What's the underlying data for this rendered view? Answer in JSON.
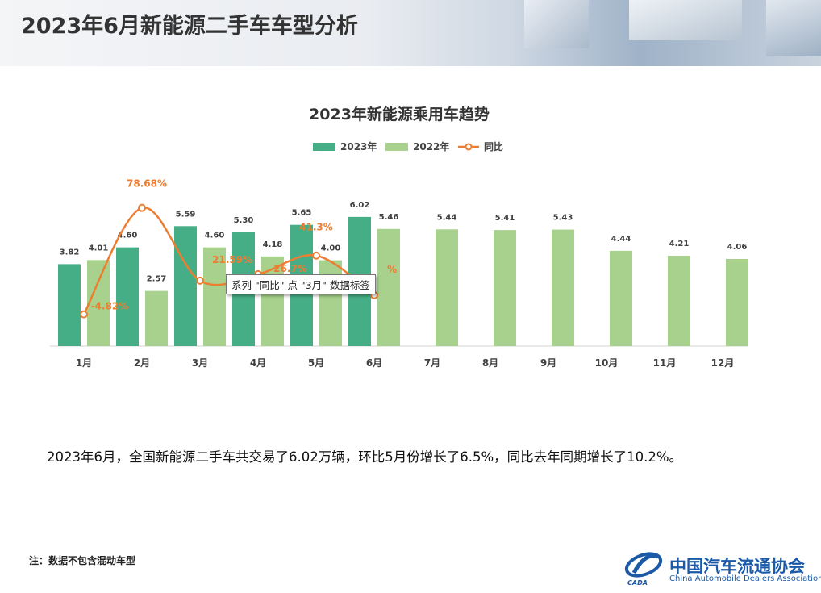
{
  "page_title": "2023年6月新能源二手车车型分析",
  "summary": "2023年6月，全国新能源二手车共交易了6.02万辆，环比5月份增长了6.5%，同比去年同期增长了10.2%。",
  "note": "注：数据不包含混动车型",
  "tooltip": "系列 \"同比\" 点 \"3月\" 数据标签",
  "logo": {
    "cn": "中国汽车流通协会",
    "en": "China Automobile Dealers Association",
    "abbr": "CADA",
    "color": "#1c5aa8"
  },
  "colors": {
    "series_2023": "#46ae86",
    "series_2022": "#a8d18d",
    "yoy": "#ed7d31"
  },
  "chart_data": {
    "type": "bar",
    "title": "2023年新能源乘用车趋势",
    "categories": [
      "1月",
      "2月",
      "3月",
      "4月",
      "5月",
      "6月",
      "7月",
      "8月",
      "9月",
      "10月",
      "11月",
      "12月"
    ],
    "series": [
      {
        "name": "2023年",
        "type": "bar",
        "values": [
          3.82,
          4.6,
          5.59,
          5.3,
          5.65,
          6.02,
          null,
          null,
          null,
          null,
          null,
          null
        ]
      },
      {
        "name": "2022年",
        "type": "bar",
        "values": [
          4.01,
          2.57,
          4.6,
          4.18,
          4.0,
          5.46,
          5.44,
          5.41,
          5.43,
          4.44,
          4.21,
          4.06
        ]
      },
      {
        "name": "同比",
        "type": "line",
        "values": [
          -4.82,
          78.68,
          21.59,
          26.7,
          41.3,
          10.2,
          null,
          null,
          null,
          null,
          null,
          null
        ],
        "labels": [
          "-4.82%",
          "78.68%",
          "21.59%",
          "26.7%",
          "41.3%",
          "%",
          "",
          "",
          "",
          "",
          "",
          ""
        ]
      }
    ],
    "legend_position": "top",
    "grid": false
  }
}
